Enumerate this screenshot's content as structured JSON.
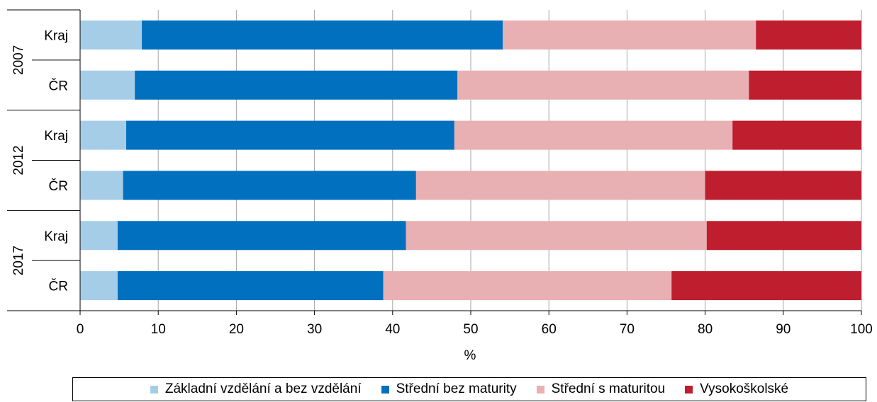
{
  "chart_data": {
    "type": "bar",
    "orientation": "horizontal",
    "stacked": true,
    "groups": [
      {
        "label": "2007",
        "categories": [
          "Kraj",
          "ČR"
        ]
      },
      {
        "label": "2012",
        "categories": [
          "Kraj",
          "ČR"
        ]
      },
      {
        "label": "2017",
        "categories": [
          "Kraj",
          "ČR"
        ]
      }
    ],
    "categories": [
      "2007 Kraj",
      "2007 ČR",
      "2012 Kraj",
      "2012 ČR",
      "2017 Kraj",
      "2017 ČR"
    ],
    "series": [
      {
        "name": "Základní vzdělání a bez vzdělání",
        "color": "#a6cde8",
        "values": [
          7.9,
          7.0,
          5.9,
          5.5,
          4.8,
          4.8
        ]
      },
      {
        "name": "Střední bez maturity",
        "color": "#0070bf",
        "values": [
          46.2,
          41.3,
          42.0,
          37.5,
          36.9,
          34.0
        ]
      },
      {
        "name": "Střední s maturitou",
        "color": "#e8b0b3",
        "values": [
          32.4,
          37.3,
          35.6,
          37.0,
          38.5,
          36.9
        ]
      },
      {
        "name": "Vysokoškolské",
        "color": "#be1e2d",
        "values": [
          13.5,
          14.4,
          16.5,
          20.0,
          19.8,
          24.3
        ]
      }
    ],
    "xlabel": "%",
    "xlim": [
      0,
      100
    ],
    "xticks": [
      "0",
      "10",
      "20",
      "30",
      "40",
      "50",
      "60",
      "70",
      "80",
      "90",
      "100"
    ],
    "grid": true,
    "legend_position": "bottom"
  }
}
